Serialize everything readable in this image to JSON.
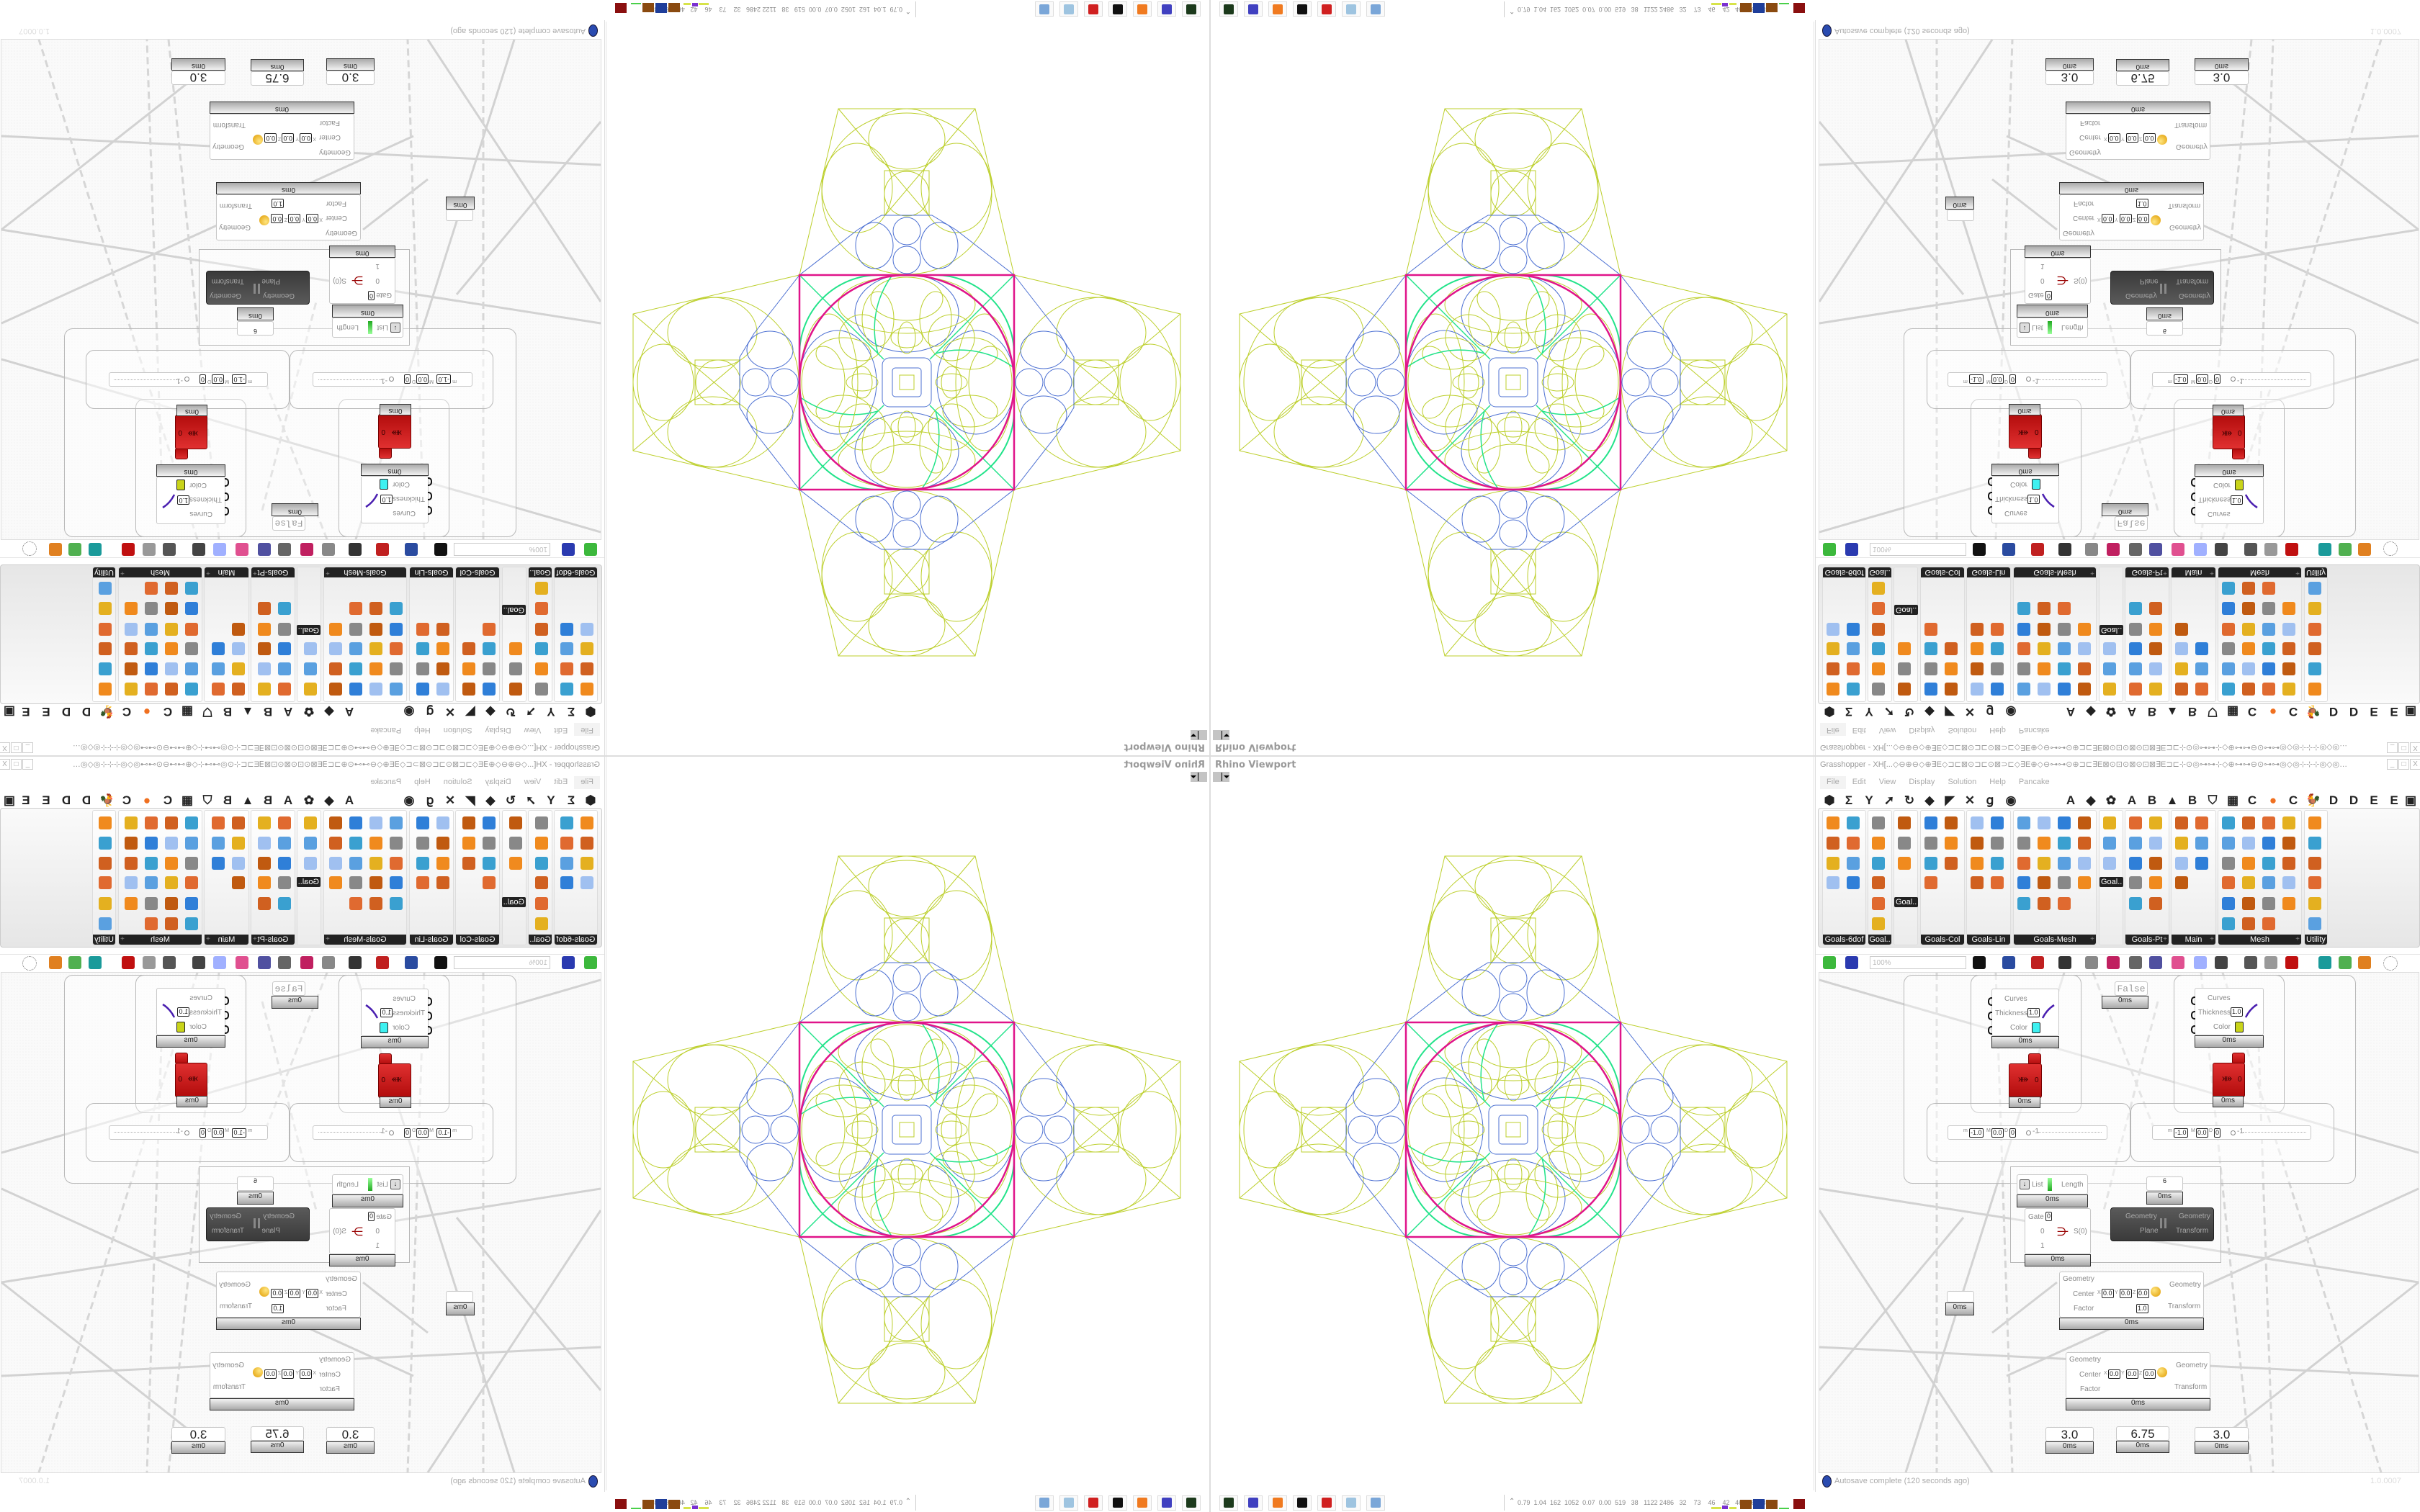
{
  "colors": {
    "geometry_yellow": "#bccf2b",
    "geometry_blue": "#4b6fd2",
    "geometry_magenta": "#e0148a",
    "geometry_green": "#22e38a",
    "preview_cyan": "#3ef0f0",
    "preview_yellow": "#c9d41a",
    "component_red": "#cc1a1a"
  },
  "viewport": {
    "title": "Rhino Viewport",
    "options_icon": "viewport-dropdown-icon"
  },
  "grasshopper": {
    "title": "Grasshopper - XH[...◇⊖⊕⊖◇⊕∃E◇⊐⊏⊠⊙⊐⊏⊙⊠⊃⊏◇∃E⊕◇⊖⊶⊶⊙⊕⊐⊏∃E⊠⊙⊡⊙⊠⊙⊡⊠∃E⊐⊏⊹⊙◎⊶⊶⊹◇⊕⊶⊶⊖⊙⊶⊶◎◇◎⊹⊹⊹◎◇◎⊶⊶⊙⊖⊶⊶⊕◇⊖⊶⊶◎⊙⊹⊐⊏∃E⊠⊙⊡⊙⊠⊙...",
    "window_buttons": [
      "_",
      "□",
      "X"
    ],
    "menu": [
      "File",
      "Edit",
      "View",
      "Display",
      "Solution",
      "Help",
      "Pancake"
    ],
    "tab_row": [
      "⬢",
      "Σ",
      "Y",
      "➚",
      "↻",
      "◆",
      "◤",
      "✕",
      "ց",
      "◉",
      "A",
      "◆",
      "✿",
      "A",
      "B",
      "▲",
      "B",
      "⛉",
      "▦",
      "C",
      "●",
      "C",
      "🐓",
      "D",
      "D",
      "E",
      "E",
      "▣"
    ],
    "ribbon": [
      {
        "label": "Goals-6dof",
        "tool_count": 8,
        "expand": false
      },
      {
        "label": "Goal..",
        "tool_count": 6,
        "expand": false
      },
      {
        "label": "",
        "tool_count": 3,
        "overflow_label": "Goal..",
        "expand": false
      },
      {
        "label": "Goals-Col",
        "tool_count": 7,
        "expand": false
      },
      {
        "label": "Goals-Lin",
        "tool_count": 8,
        "expand": false
      },
      {
        "label": "Goals-Mesh",
        "tool_count": 19,
        "expand": true
      },
      {
        "label": "",
        "tool_count": 3,
        "overflow_label": "Goal..",
        "expand": false
      },
      {
        "label": "Goals-Pt",
        "tool_count": 10,
        "expand": true
      },
      {
        "label": "Main",
        "tool_count": 7,
        "expand": true
      },
      {
        "label": "Mesh",
        "tool_count": 23,
        "expand": true
      },
      {
        "label": "Utility",
        "tool_count": 6,
        "expand": false
      }
    ],
    "toolbar": {
      "zoom": "100%",
      "icons": [
        "new-document-icon",
        "save-icon",
        "zoom-extents-icon",
        "preview-eye-icon",
        "sketch-icon",
        "lock-icon",
        "email-icon",
        "gha-icon",
        "doc-icon",
        "search-icon",
        "package-icon",
        "bulb-icon",
        "wires-icon",
        "shaded-preview-icon",
        "wireframe-icon",
        "red-preview-icon",
        "teal-preview-icon",
        "green-preview-icon",
        "half-sphere-icon",
        "dotted-circle-icon"
      ]
    },
    "canvas": {
      "timing": "0ms",
      "preview_left": {
        "curves": "Curves",
        "thickness": "Thickness",
        "thickness_value": "1.0",
        "color": "Color",
        "color_hex": "#3ef0f0"
      },
      "preview_right": {
        "curves": "Curves",
        "thickness": "Thickness",
        "thickness_value": "1.0",
        "color": "Color",
        "color_hex": "#c9d41a"
      },
      "red_output": "0",
      "toggle": "False",
      "slider": {
        "m_label": "m",
        "m": "-1.0",
        "M_label": "M",
        "M": "0.0",
        "D_label": "D",
        "D": "0",
        "value": "-1"
      },
      "list_length": {
        "input": "List",
        "output": "Length"
      },
      "panel_value": "6",
      "gate": {
        "label": "Gate",
        "value": "0",
        "in0": "0",
        "in1": "1",
        "output": "S(0)"
      },
      "orient": {
        "in1": "Geometry",
        "in2": "Plane",
        "out1": "Geometry",
        "out2": "Transform"
      },
      "scale1": {
        "geometry": "Geometry",
        "center": "Center",
        "x": "X",
        "xv": "0.0",
        "y": "Y",
        "yv": "0.0",
        "z": "Z",
        "zv": "0.0",
        "factor": "Factor",
        "factor_value": "1.0",
        "out1": "Geometry",
        "out2": "Transform"
      },
      "scale2": {
        "geometry": "Geometry",
        "center": "Center",
        "x": "X",
        "xv": "0.0",
        "y": "Y",
        "yv": "0.0",
        "z": "Z",
        "zv": "0.0",
        "factor": "Factor",
        "out1": "Geometry",
        "out2": "Transform"
      },
      "numbers": [
        "3.0",
        "6.75",
        "3.0"
      ]
    },
    "status": {
      "message": "Autosave complete (120 seconds ago)",
      "version": "1.0.0007"
    }
  },
  "perf": {
    "values": "0.79  1.04  162  1052  0.07  0.00  519   38   1122 2486   32    73    46    42   4675 6848",
    "bar_colors": [
      "#d7e34a",
      "#7a2fd0",
      "#d7e34a",
      "#8a4a10",
      "#1f3e9a",
      "#8a4a10",
      "#4ad04a",
      "#8a0f0f"
    ]
  },
  "taskbar": [
    {
      "name": "terminal",
      "color": "#1c3a1c"
    },
    {
      "name": "floppy-64",
      "color": "#4040c0"
    },
    {
      "name": "firefox",
      "color": "#f07a20"
    },
    {
      "name": "inkscape",
      "color": "#111111"
    },
    {
      "name": "gear-app",
      "color": "#d02020"
    },
    {
      "name": "notepad",
      "color": "#9ec4e0"
    },
    {
      "name": "calculator",
      "color": "#7aa6d8"
    }
  ]
}
